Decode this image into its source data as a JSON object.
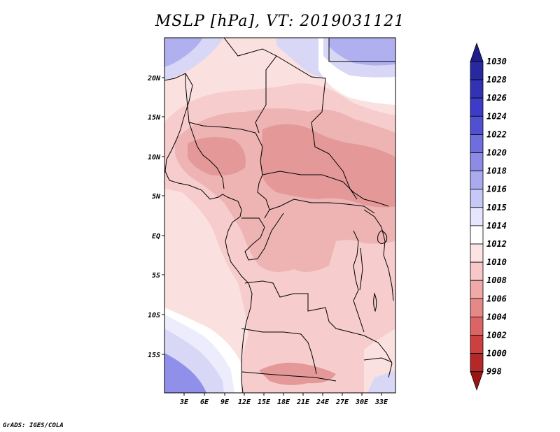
{
  "title": "MSLP [hPa], VT: 2019031121",
  "footer": "GrADS: IGES/COLA",
  "map": {
    "variable": "Mean sea level pressure",
    "units": "hPa",
    "valid_time": "2019031121",
    "lon_ticks": [
      "3E",
      "6E",
      "9E",
      "12E",
      "15E",
      "18E",
      "21E",
      "24E",
      "27E",
      "30E",
      "33E"
    ],
    "lat_ticks": [
      "20N",
      "15N",
      "10N",
      "5N",
      "EQ",
      "5S",
      "10S",
      "15S"
    ]
  },
  "colorbar": {
    "levels": [
      "1030",
      "1028",
      "1026",
      "1024",
      "1022",
      "1020",
      "1018",
      "1016",
      "1015",
      "1014",
      "1012",
      "1010",
      "1008",
      "1006",
      "1004",
      "1002",
      "1000",
      "998"
    ],
    "colors": [
      "#1e1e8c",
      "#2828a0",
      "#3232b4",
      "#3c3cc8",
      "#5050d2",
      "#6e6edc",
      "#8c8ce6",
      "#aaaaf0",
      "#c8c8f8",
      "#e6e6ff",
      "#ffffff",
      "#fde4e4",
      "#f8c8c8",
      "#f0a8a8",
      "#e68888",
      "#dc6464",
      "#cc4040",
      "#b42828",
      "#9c1414"
    ],
    "pressure_fields": {
      "1014": "#fbe0e0",
      "1012": "#f6cccc",
      "1010": "#eeb4b4",
      "1008": "#e49898",
      "1016": "#d8d8f6",
      "1018": "#b0b0f0",
      "1020": "#9090ea"
    }
  }
}
